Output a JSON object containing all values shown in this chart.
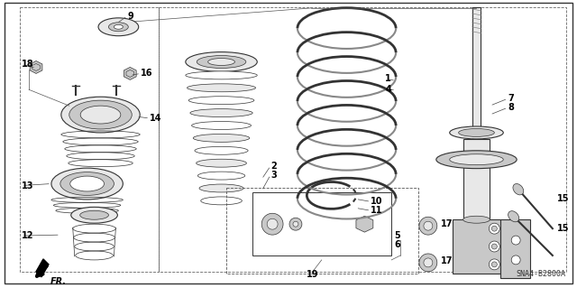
{
  "bg_color": "#f0f0f0",
  "border_color": "#222222",
  "diagram_code": "SNA4-B2800A",
  "label_fontsize": 7,
  "diagram_fontsize": 6,
  "line_color": "#333333",
  "gray_fill": "#c8c8c8",
  "light_gray": "#e8e8e8",
  "dark_gray": "#888888",
  "figsize": [
    6.4,
    3.19
  ],
  "dpi": 100
}
